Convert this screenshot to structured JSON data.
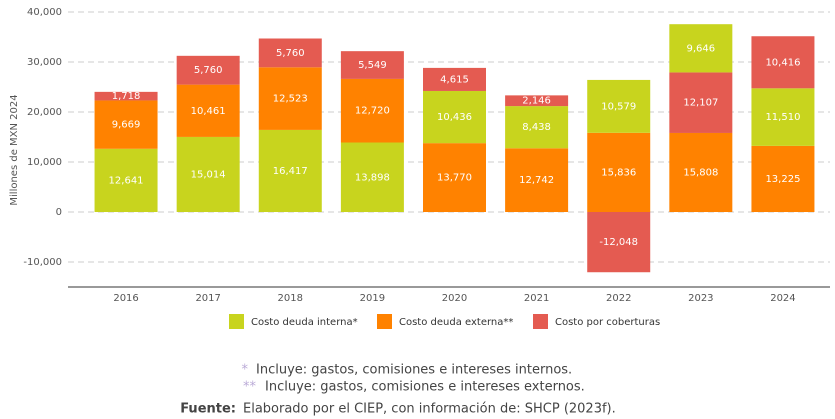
{
  "chart_data": {
    "type": "stacked_bar",
    "y_label": "Millones de MXN 2024",
    "categories": [
      "2016",
      "2017",
      "2018",
      "2019",
      "2020",
      "2021",
      "2022",
      "2023",
      "2024"
    ],
    "series": [
      {
        "name": "Costo deuda interna*",
        "color": "#c8d41e",
        "values": [
          12641,
          15014,
          16417,
          13898,
          10436,
          8438,
          10579,
          9646,
          11510
        ],
        "value_labels": [
          "12,641",
          "15,014",
          "16,417",
          "13,898",
          "10,436",
          "8,438",
          "10,579",
          "9,646",
          "11,510"
        ]
      },
      {
        "name": "Costo deuda externa**",
        "color": "#ff8200",
        "values": [
          9669,
          10461,
          12523,
          12720,
          13770,
          12742,
          15836,
          15808,
          13225
        ],
        "value_labels": [
          "9,669",
          "10,461",
          "12,523",
          "12,720",
          "13,770",
          "12,742",
          "15,836",
          "15,808",
          "13,225"
        ]
      },
      {
        "name": "Costo por coberturas",
        "color": "#e45b51",
        "values": [
          1718,
          5760,
          5760,
          5549,
          4615,
          2146,
          -12048,
          12107,
          10416
        ],
        "value_labels": [
          "1,718",
          "5,760",
          "5,760",
          "5,549",
          "4,615",
          "2,146",
          "-12,048",
          "12,107",
          "10,416"
        ]
      }
    ],
    "stack_order": [
      [
        0,
        1,
        2
      ],
      [
        0,
        1,
        2
      ],
      [
        0,
        1,
        2
      ],
      [
        0,
        1,
        2
      ],
      [
        1,
        0,
        2
      ],
      [
        1,
        0,
        2
      ],
      [
        1,
        0,
        2
      ],
      [
        1,
        2,
        0
      ],
      [
        1,
        0,
        2
      ]
    ],
    "ylim": [
      -15000,
      40000
    ],
    "yticks": [
      {
        "value": -10000,
        "label": "-10,000"
      },
      0,
      {
        "value": 10000,
        "label": "10,000"
      },
      {
        "value": 20000,
        "label": "20,000"
      },
      {
        "value": 30000,
        "label": "30,000"
      },
      {
        "value": 40000,
        "label": "40,000"
      }
    ],
    "grid": true,
    "legend": "bottom"
  },
  "notes": [
    {
      "marker": "*",
      "text": "Incluye: gastos, comisiones e intereses internos."
    },
    {
      "marker": "**",
      "text": "Incluye: gastos, comisiones e intereses externos."
    }
  ],
  "source": {
    "label": "Fuente:",
    "text": "Elaborado por el CIEP, con información de: SHCP (2023f)."
  }
}
